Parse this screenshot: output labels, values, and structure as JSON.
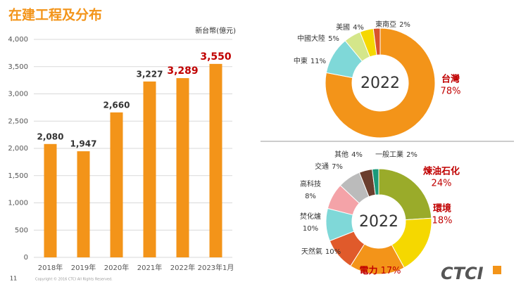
{
  "slide": {
    "title": "在建工程及分布",
    "page_number": "11",
    "copyright": "Copyright © 2016 CTCI All Rights Reserved.",
    "logo": "CTCI"
  },
  "chart_data": [
    {
      "type": "bar",
      "unit_label": "新台幣(億元)",
      "categories": [
        "2018年",
        "2019年",
        "2020年",
        "2021年",
        "2022年",
        "2023年1月"
      ],
      "values": [
        2080,
        1947,
        2660,
        3227,
        3289,
        3550
      ],
      "value_labels": [
        "2,080",
        "1,947",
        "2,660",
        "3,227",
        "3,289",
        "3,550"
      ],
      "value_label_colors": [
        "#333333",
        "#333333",
        "#333333",
        "#333333",
        "#c00000",
        "#c00000"
      ],
      "color": "#f39419",
      "ylim": [
        0,
        4000
      ],
      "yticks": [
        0,
        500,
        {
          "value": 1000,
          "label": "1,000"
        },
        {
          "value": 1500,
          "label": "1,500"
        },
        {
          "value": 2000,
          "label": "2,000"
        },
        {
          "value": 2500,
          "label": "2,500"
        },
        {
          "value": 3000,
          "label": "3,000"
        },
        {
          "value": 3500,
          "label": "3,500"
        },
        {
          "value": 4000,
          "label": "4,000"
        }
      ],
      "grid": true
    },
    {
      "type": "donut",
      "center_label": "2022",
      "categories": [
        "台灣",
        "中東",
        "中國大陸",
        "美國",
        "東南亞"
      ],
      "values": [
        78,
        11,
        5,
        4,
        2
      ],
      "value_labels": [
        "78%",
        "11%",
        "5%",
        "4%",
        "2%"
      ],
      "colors": [
        "#f39419",
        "#7fd8d8",
        "#d4e68a",
        "#f5d800",
        "#d9532b"
      ],
      "label_colors": [
        "#c00000",
        "#333333",
        "#333333",
        "#333333",
        "#333333"
      ]
    },
    {
      "type": "donut",
      "center_label": "2022",
      "categories": [
        "煉油石化",
        "環境",
        "電力",
        "天然氣",
        "焚化爐",
        "高科技",
        "交通",
        "其他",
        "一般工業"
      ],
      "values": [
        24,
        18,
        17,
        10,
        10,
        8,
        7,
        4,
        2
      ],
      "value_labels": [
        "24%",
        "18%",
        "17%",
        "10%",
        "10%",
        "8%",
        "7%",
        "4%",
        "2%"
      ],
      "colors": [
        "#9aab2a",
        "#f5d800",
        "#f39419",
        "#e05a2b",
        "#7fd8d8",
        "#f4a3a8",
        "#bbbbbb",
        "#6b3e2e",
        "#1a9a7a"
      ],
      "label_colors": [
        "#c00000",
        "#c00000",
        "#c00000",
        "#333333",
        "#333333",
        "#333333",
        "#333333",
        "#333333",
        "#333333"
      ]
    }
  ]
}
